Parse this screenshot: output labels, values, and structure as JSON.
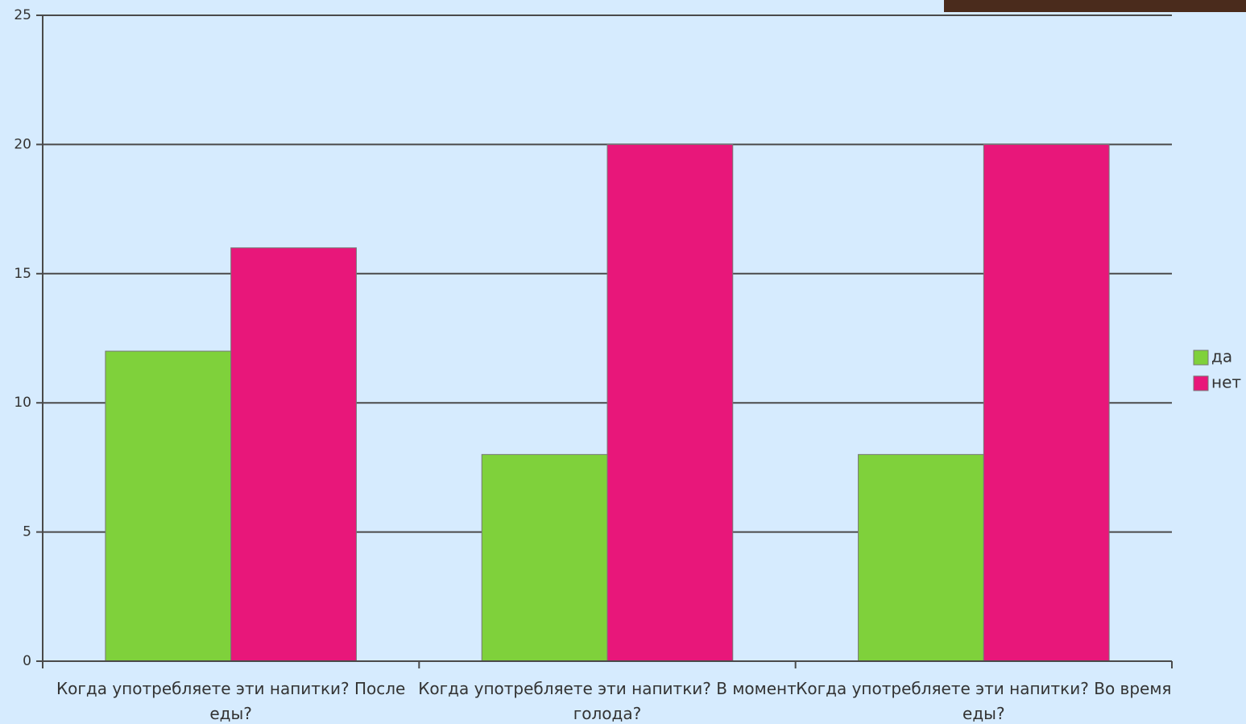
{
  "chart_data": {
    "type": "bar",
    "categories": [
      "Когда употребляете эти напитки? После еды?",
      "Когда употребляете эти напитки? В момент голода?",
      "Когда употребляете эти напитки? Во время еды?"
    ],
    "series": [
      {
        "name": "да",
        "color": "#7fd13b",
        "values": [
          12,
          8,
          8
        ]
      },
      {
        "name": "нет",
        "color": "#e8177a",
        "values": [
          16,
          20,
          20
        ]
      }
    ],
    "ylim": [
      0,
      25
    ],
    "yticks": [
      0,
      5,
      10,
      15,
      20,
      25
    ],
    "grid": true,
    "legend": "right"
  }
}
